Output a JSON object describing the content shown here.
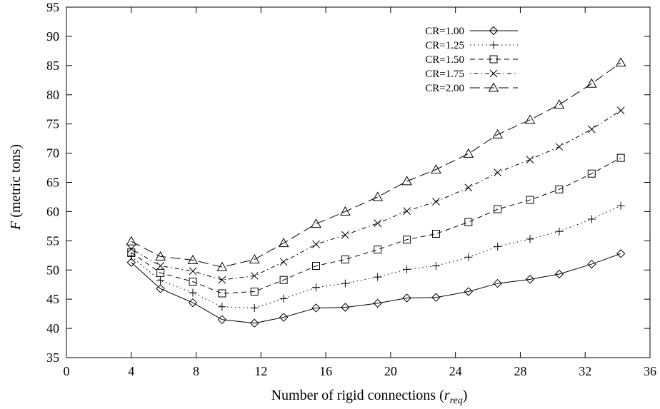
{
  "chart_data": {
    "type": "line",
    "xlabel": "Number of rigid connections (",
    "xlabel_math": "r",
    "xlabel_sub": "req",
    "xlabel_close": ")",
    "ylabel_italic": "F",
    "ylabel": " (metric tons)",
    "xlim": [
      0,
      36
    ],
    "ylim": [
      35,
      95
    ],
    "x_ticks": [
      0,
      4,
      8,
      12,
      16,
      20,
      24,
      28,
      32,
      36
    ],
    "y_ticks": [
      35,
      40,
      45,
      50,
      55,
      60,
      65,
      70,
      75,
      80,
      85,
      90,
      95
    ],
    "grid": false,
    "legend_position": "top-right",
    "x": [
      4,
      5.8,
      7.8,
      9.6,
      11.6,
      13.4,
      15.4,
      17.2,
      19.2,
      21,
      22.8,
      24.8,
      26.6,
      28.6,
      30.4,
      32.4,
      34.2
    ],
    "series": [
      {
        "name": "CR=1.00",
        "marker": "diamond",
        "dash": "solid",
        "values": [
          51.3,
          46.8,
          44.4,
          41.5,
          40.9,
          41.9,
          43.5,
          43.6,
          44.3,
          45.2,
          45.3,
          46.3,
          47.7,
          48.4,
          49.3,
          51.0,
          52.8
        ]
      },
      {
        "name": "CR=1.25",
        "marker": "plus",
        "dash": "dotted",
        "values": [
          52.3,
          48.2,
          46.1,
          43.7,
          43.5,
          45.1,
          47.0,
          47.7,
          48.8,
          50.1,
          50.7,
          52.2,
          54.0,
          55.3,
          56.6,
          58.7,
          61.0
        ]
      },
      {
        "name": "CR=1.50",
        "marker": "square",
        "dash": "dashed",
        "values": [
          53.0,
          49.5,
          48.0,
          46.0,
          46.3,
          48.3,
          50.7,
          51.8,
          53.5,
          55.2,
          56.2,
          58.2,
          60.4,
          62.0,
          63.8,
          66.5,
          69.2
        ]
      },
      {
        "name": "CR=1.75",
        "marker": "cross",
        "dash": "dashdot",
        "values": [
          53.6,
          50.7,
          49.8,
          48.3,
          49.0,
          51.4,
          54.4,
          56.0,
          58.0,
          60.1,
          61.7,
          64.1,
          66.7,
          68.9,
          71.1,
          74.1,
          77.3
        ]
      },
      {
        "name": "CR=2.00",
        "marker": "triangle",
        "dash": "longdash",
        "values": [
          54.9,
          52.3,
          51.7,
          50.5,
          51.8,
          54.6,
          57.9,
          60.0,
          62.5,
          65.2,
          67.2,
          69.9,
          73.2,
          75.7,
          78.3,
          81.9,
          85.5
        ]
      }
    ]
  }
}
